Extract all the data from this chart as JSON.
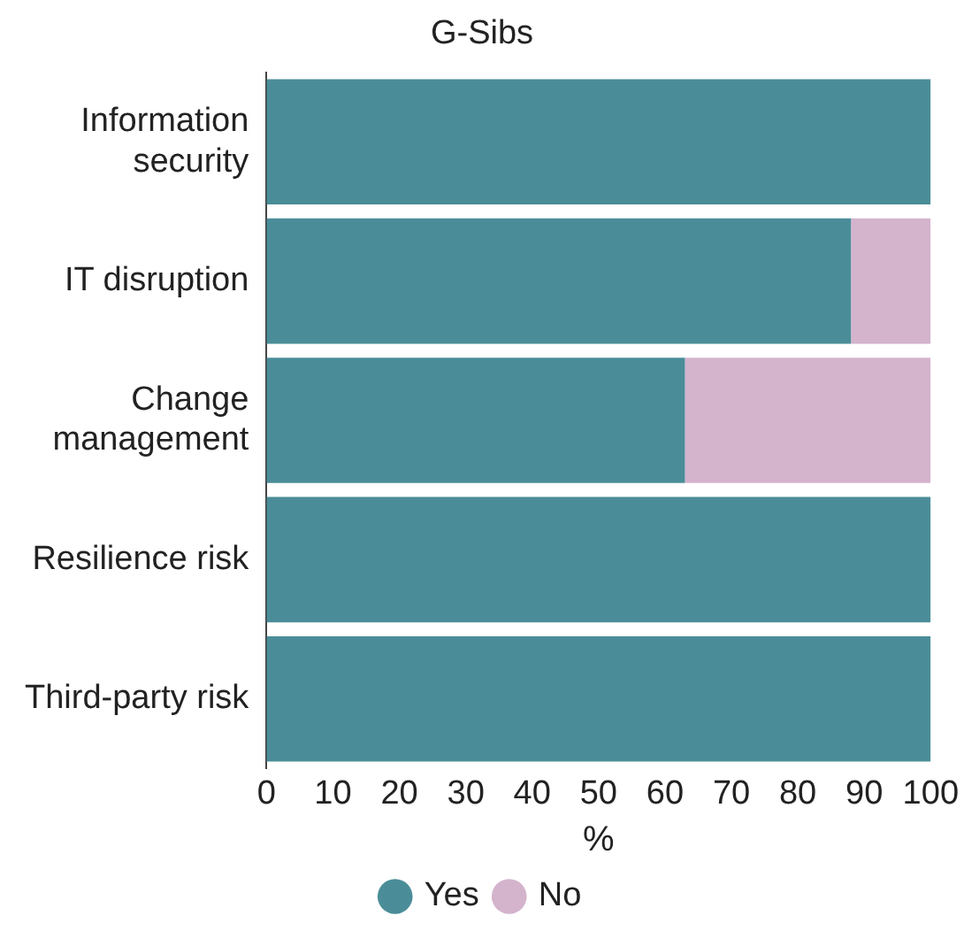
{
  "chart_data": {
    "type": "bar",
    "orientation": "horizontal",
    "stacked": true,
    "title": "G-Sibs",
    "xlabel": "%",
    "categories": [
      "Information security",
      "IT disruption",
      "Change management",
      "Resilience risk",
      "Third-party risk"
    ],
    "series": [
      {
        "name": "Yes",
        "color": "#4a8d98",
        "values": [
          100,
          88,
          63,
          100,
          100
        ]
      },
      {
        "name": "No",
        "color": "#d4b3cd",
        "values": [
          0,
          12,
          37,
          0,
          0
        ]
      }
    ],
    "xlim": [
      0,
      100
    ],
    "xticks": [
      0,
      10,
      20,
      30,
      40,
      50,
      60,
      70,
      80,
      90,
      100
    ],
    "grid": false,
    "legend": "bottom"
  }
}
